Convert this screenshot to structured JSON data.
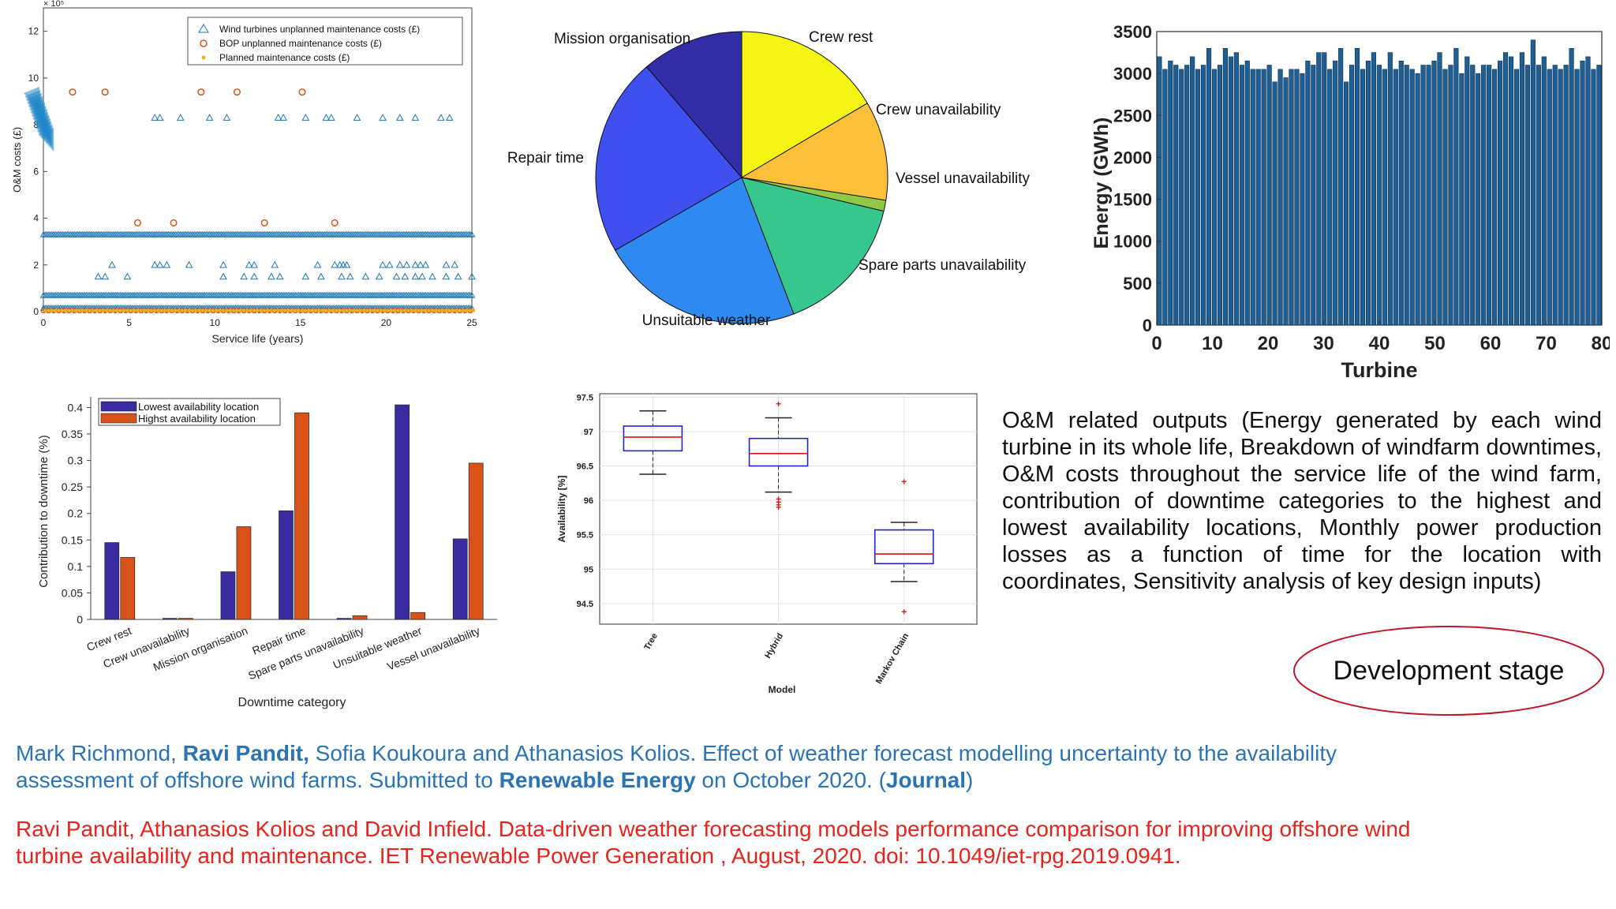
{
  "charts": {
    "om_costs": {
      "type": "scatter",
      "xlabel": "Service life (years)",
      "ylabel": "O&M costs (£)",
      "y_multiplier": "× 10⁵",
      "xlim": [
        0,
        25
      ],
      "ylim": [
        0,
        13
      ],
      "xticks": [
        "0",
        "5",
        "10",
        "15",
        "20",
        "25"
      ],
      "yticks": [
        "0",
        "2",
        "4",
        "6",
        "8",
        "10",
        "12"
      ],
      "legend": [
        {
          "name": "Wind turbines unplanned maintenance costs (£)",
          "color": "#1f77b4",
          "marker": "triangle"
        },
        {
          "name": "BOP unplanned maintenance costs (£)",
          "color": "#d95319",
          "marker": "circle"
        },
        {
          "name": "Planned maintenance costs (£)",
          "color": "#edb120",
          "marker": "star"
        }
      ],
      "wt_levels": [
        8.3,
        3.3,
        2.0,
        1.5,
        0.7,
        0.15
      ],
      "bop_points": [
        [
          1.7,
          9.4
        ],
        [
          3.6,
          9.4
        ],
        [
          9.2,
          9.4
        ],
        [
          11.3,
          9.4
        ],
        [
          15.1,
          9.4
        ],
        [
          5.5,
          3.8
        ],
        [
          7.6,
          3.8
        ],
        [
          12.9,
          3.8
        ],
        [
          17,
          3.8
        ]
      ]
    },
    "downtime_pie": {
      "type": "pie",
      "slices": [
        {
          "label": "Crew rest",
          "value": 16.5,
          "color": "#f4f415"
        },
        {
          "label": "Crew unavailability",
          "value": 11.0,
          "color": "#fbbf3a"
        },
        {
          "label": "Vessel unavailability",
          "value": 1.2,
          "color": "#91c845"
        },
        {
          "label": "Spare parts unavailability",
          "value": 15.5,
          "color": "#36c78f"
        },
        {
          "label": "Unsuitable weather",
          "value": 22.5,
          "color": "#2e89f0"
        },
        {
          "label": "Repair time",
          "value": 22.0,
          "color": "#4050f0"
        },
        {
          "label": "Mission organisation",
          "value": 11.3,
          "color": "#322ca6"
        }
      ]
    },
    "energy_bars": {
      "type": "bar",
      "xlabel": "Turbine",
      "ylabel": "Energy (GWh)",
      "xlim": [
        0,
        80
      ],
      "ylim": [
        0,
        3500
      ],
      "xticks": [
        "0",
        "10",
        "20",
        "30",
        "40",
        "50",
        "60",
        "70",
        "80"
      ],
      "yticks": [
        "0",
        "500",
        "1000",
        "1500",
        "2000",
        "2500",
        "3000",
        "3500"
      ],
      "values": [
        3200,
        3050,
        3150,
        3100,
        3050,
        3100,
        3200,
        3050,
        3100,
        3300,
        3050,
        3100,
        3300,
        3200,
        3250,
        3100,
        3150,
        3050,
        3050,
        3050,
        3100,
        2900,
        3050,
        2950,
        3050,
        3050,
        3000,
        3150,
        3100,
        3250,
        3250,
        3050,
        3150,
        3300,
        2900,
        3100,
        3300,
        3050,
        3150,
        3250,
        3100,
        3050,
        3250,
        3050,
        3150,
        3100,
        3050,
        3000,
        3100,
        3100,
        3150,
        3250,
        3050,
        3100,
        3300,
        3000,
        3200,
        3100,
        3000,
        3100,
        3100,
        3050,
        3150,
        3250,
        3200,
        3050,
        3250,
        3100,
        3400,
        3100,
        3200,
        3050,
        3100,
        3050,
        3100,
        3300,
        3050,
        3150,
        3200,
        3050,
        3100
      ],
      "color": "#1f5f94"
    },
    "downtime_contrib": {
      "type": "bar",
      "xlabel": "Downtime category",
      "ylabel": "Contribution to downtime (%)",
      "ylim": [
        0,
        0.42
      ],
      "yticks": [
        "0",
        "0.05",
        "0.1",
        "0.15",
        "0.2",
        "0.25",
        "0.3",
        "0.35",
        "0.4"
      ],
      "categories": [
        "Crew rest",
        "Crew unavailability",
        "Mission organisation",
        "Repair time",
        "Spare parts unavailability",
        "Unsuitable weather",
        "Vessel unavailability"
      ],
      "series": [
        {
          "name": "Lowest availability location",
          "color": "#3a2ca0",
          "values": [
            0.145,
            0.002,
            0.09,
            0.205,
            0.002,
            0.405,
            0.152
          ]
        },
        {
          "name": "Highst availability location",
          "color": "#d95319",
          "values": [
            0.117,
            0.002,
            0.175,
            0.39,
            0.007,
            0.013,
            0.295
          ]
        }
      ]
    },
    "availability_box": {
      "type": "box",
      "xlabel": "Model",
      "ylabel": "Availability [%]",
      "ylim": [
        94.2,
        97.55
      ],
      "yticks": [
        "94.5",
        "95",
        "95.5",
        "96",
        "96.5",
        "97",
        "97.5"
      ],
      "boxes": [
        {
          "label": "Tree",
          "min": 96.38,
          "q1": 96.72,
          "median": 96.92,
          "q3": 97.08,
          "max": 97.3,
          "outliers": []
        },
        {
          "label": "Hybrid",
          "min": 96.12,
          "q1": 96.5,
          "median": 96.68,
          "q3": 96.9,
          "max": 97.2,
          "outliers": [
            95.9,
            95.93,
            95.97,
            96.02,
            97.4
          ]
        },
        {
          "label": "Markov Chain",
          "min": 94.82,
          "q1": 95.08,
          "median": 95.22,
          "q3": 95.57,
          "max": 95.68,
          "outliers": [
            96.27,
            94.38
          ]
        }
      ]
    }
  },
  "description": "O&M related outputs (Energy generated by each wind turbine in its whole life, Breakdown of windfarm downtimes, O&M costs throughout the service life of the wind farm, contribution of downtime categories to the highest and lowest availability locations, Monthly power production losses as a function of time for the location with coordinates, Sensitivity analysis of key design inputs)",
  "badge_label": "Development stage",
  "references": {
    "ref1": {
      "authors_a": "Mark Richmond, ",
      "author_bold": "Ravi Pandit,",
      "authors_b": " Sofia Koukoura and Athanasios Kolios. Effect of weather forecast modelling uncertainty to the availability assessment of offshore wind farms. Submitted to ",
      "journal": "Renewable Energy",
      "tail_a": " on October 2020. (",
      "type": "Journal",
      "tail_b": ")"
    },
    "ref2": "Ravi Pandit, Athanasios Kolios and David Infield. Data-driven weather forecasting models performance comparison for improving offshore wind turbine availability and maintenance. IET Renewable Power Generation , August, 2020. doi: 10.1049/iet-rpg.2019.0941."
  }
}
